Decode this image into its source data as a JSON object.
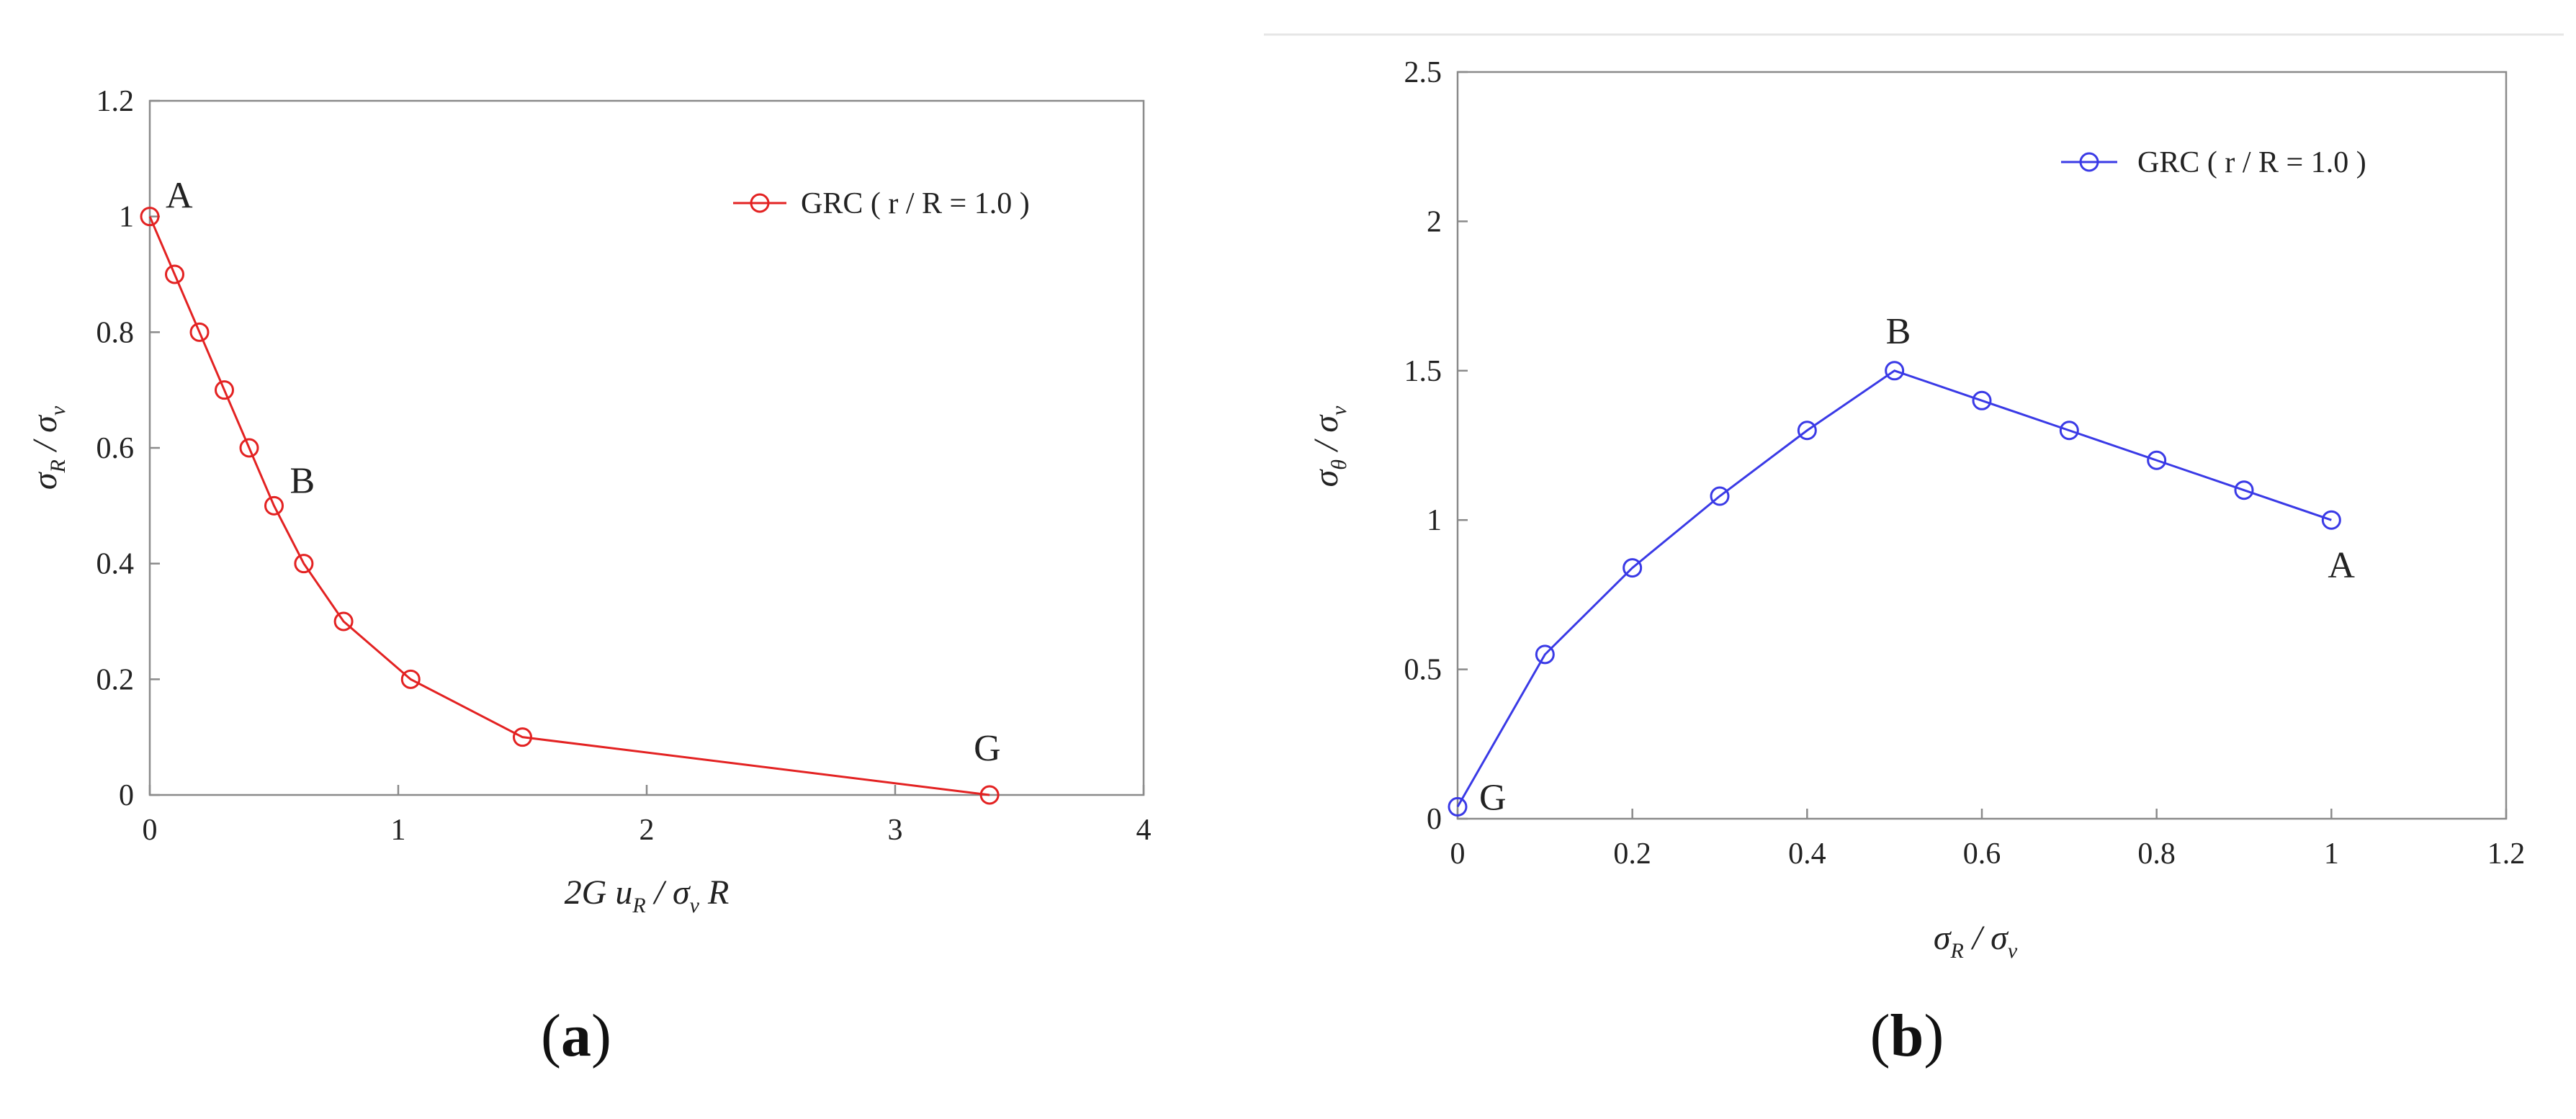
{
  "chart_data": [
    {
      "type": "line",
      "panel_caption": "a",
      "x_min": 0,
      "x_max": 4,
      "y_min": 0,
      "y_max": 1.2,
      "xticks": [
        "0",
        "1",
        "2",
        "3",
        "4"
      ],
      "xtick_values": [
        0,
        1,
        2,
        3,
        4
      ],
      "yticks": [
        "0",
        "0.2",
        "0.4",
        "0.6",
        "0.8",
        "1",
        "1.2"
      ],
      "ytick_values": [
        0,
        0.2,
        0.4,
        0.6,
        0.8,
        1,
        1.2
      ],
      "xlabel_parts": [
        "2G u",
        "R",
        " / σ",
        "v",
        " R"
      ],
      "ylabel_parts": [
        "σ",
        "R",
        " / σ",
        "v"
      ],
      "color": "#e32222",
      "series": [
        {
          "name": "GRC ( r / R = 1.0 )",
          "x": [
            0,
            0.1,
            0.2,
            0.3,
            0.4,
            0.5,
            0.62,
            0.78,
            1.05,
            1.5,
            3.38
          ],
          "y": [
            1.0,
            0.9,
            0.8,
            0.7,
            0.6,
            0.5,
            0.4,
            0.3,
            0.2,
            0.1,
            0.0
          ]
        }
      ],
      "annotations": [
        {
          "text": "A",
          "x": 0,
          "y": 1.0
        },
        {
          "text": "B",
          "x": 0.5,
          "y": 0.5
        },
        {
          "text": "G",
          "x": 3.38,
          "y": 0.0
        }
      ],
      "legend_position": "top-right",
      "grid": false
    },
    {
      "type": "line",
      "panel_caption": "b",
      "x_min": 0,
      "x_max": 1.2,
      "y_min": 0,
      "y_max": 2.5,
      "xticks": [
        "0",
        "0.2",
        "0.4",
        "0.6",
        "0.8",
        "1",
        "1.2"
      ],
      "xtick_values": [
        0,
        0.2,
        0.4,
        0.6,
        0.8,
        1,
        1.2
      ],
      "yticks": [
        "0",
        "0.5",
        "1",
        "1.5",
        "2",
        "2.5"
      ],
      "ytick_values": [
        0,
        0.5,
        1,
        1.5,
        2,
        2.5
      ],
      "xlabel_parts": [
        "σ",
        "R",
        " / σ",
        "v",
        ""
      ],
      "ylabel_parts": [
        "σ",
        "θ",
        " / σ",
        "v"
      ],
      "color": "#3a3ae6",
      "series": [
        {
          "name": "GRC ( r / R = 1.0 )",
          "x": [
            0,
            0.1,
            0.2,
            0.3,
            0.4,
            0.5,
            0.6,
            0.7,
            0.8,
            0.9,
            1.0
          ],
          "y": [
            0.04,
            0.55,
            0.84,
            1.08,
            1.3,
            1.5,
            1.4,
            1.3,
            1.2,
            1.1,
            1.0
          ]
        }
      ],
      "annotations": [
        {
          "text": "A",
          "x": 1.0,
          "y": 1.0
        },
        {
          "text": "B",
          "x": 0.5,
          "y": 1.5
        },
        {
          "text": "G",
          "x": 0,
          "y": 0.04
        }
      ],
      "legend_position": "top-right",
      "grid": false
    }
  ]
}
